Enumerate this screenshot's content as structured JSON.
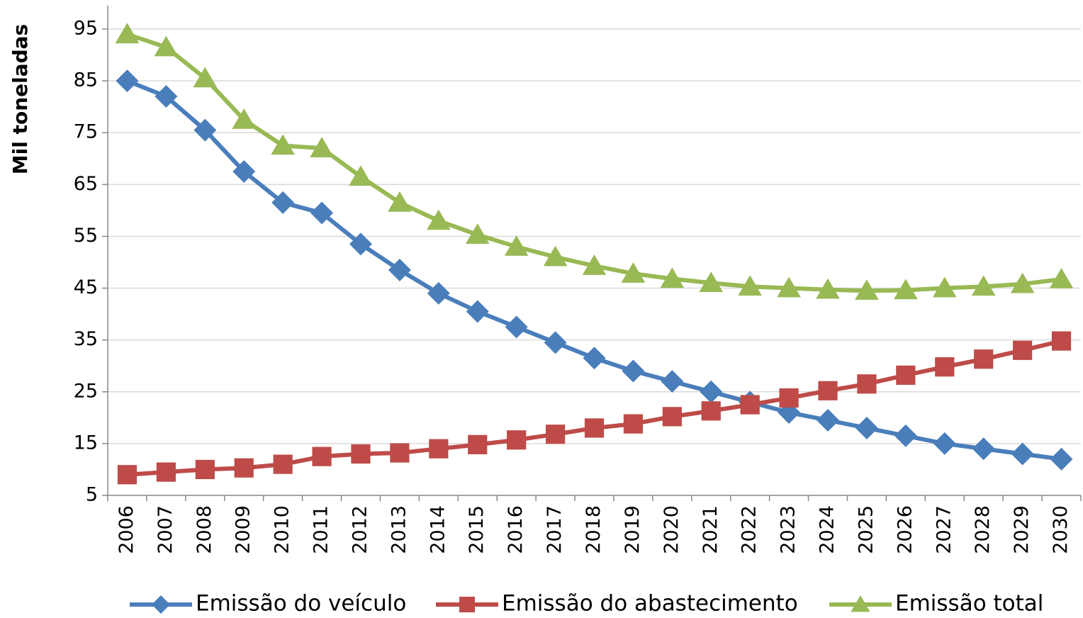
{
  "chart_data": {
    "type": "line",
    "y_label": "Mil toneladas",
    "categories": [
      "2006",
      "2007",
      "2008",
      "2009",
      "2010",
      "2011",
      "2012",
      "2013",
      "2014",
      "2015",
      "2016",
      "2017",
      "2018",
      "2019",
      "2020",
      "2021",
      "2022",
      "2023",
      "2024",
      "2025",
      "2026",
      "2027",
      "2028",
      "2029",
      "2030"
    ],
    "series": [
      {
        "name": "Emissão do veículo",
        "color": "#4a7ebb",
        "marker": "diamond",
        "values": [
          85,
          82,
          75.5,
          67.5,
          61.5,
          59.5,
          53.5,
          48.5,
          44,
          40.5,
          37.5,
          34.5,
          31.5,
          29,
          27,
          25,
          23,
          21,
          19.5,
          18,
          16.5,
          15,
          14,
          13,
          12
        ]
      },
      {
        "name": "Emissão do abastecimento",
        "color": "#be4b48",
        "marker": "square",
        "values": [
          9,
          9.5,
          10,
          10.3,
          11,
          12.5,
          13,
          13.2,
          14,
          14.8,
          15.7,
          16.8,
          18,
          18.8,
          20.2,
          21.3,
          22.5,
          23.8,
          25.2,
          26.5,
          28.2,
          29.8,
          31.3,
          33,
          34.8
        ]
      },
      {
        "name": "Emissão total",
        "color": "#98b954",
        "marker": "triangle",
        "values": [
          94,
          91.5,
          85.5,
          77.5,
          72.5,
          72,
          66.5,
          61.5,
          58,
          55.3,
          53,
          51,
          49.3,
          47.8,
          46.8,
          46,
          45.3,
          45,
          44.7,
          44.5,
          44.6,
          45,
          45.3,
          45.8,
          46.7
        ]
      }
    ],
    "ylim": [
      5,
      95
    ],
    "yticks": [
      5,
      15,
      25,
      35,
      45,
      55,
      65,
      75,
      85,
      95
    ],
    "grid": true,
    "legend": "bottom"
  }
}
